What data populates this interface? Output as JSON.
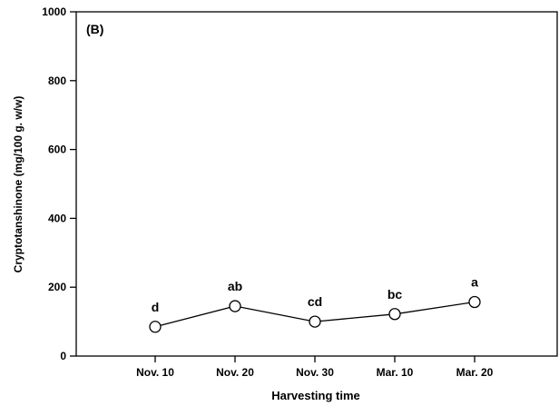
{
  "chart_data": {
    "type": "line",
    "panel_label": "(B)",
    "xlabel": "Harvesting time",
    "ylabel": "Cryptotanshinone (mg/100 g. w/w)",
    "categories": [
      "Nov. 10",
      "Nov. 20",
      "Nov. 30",
      "Mar. 10",
      "Mar. 20"
    ],
    "series": [
      {
        "values": [
          85,
          145,
          100,
          122,
          157
        ]
      }
    ],
    "letters": [
      "d",
      "ab",
      "cd",
      "bc",
      "a"
    ],
    "ylim": [
      0,
      1000
    ],
    "yticks": [
      "0",
      "200",
      "400",
      "600",
      "800",
      "1000"
    ],
    "grid": false,
    "marker": "open-circle",
    "line_color": "#000000"
  }
}
